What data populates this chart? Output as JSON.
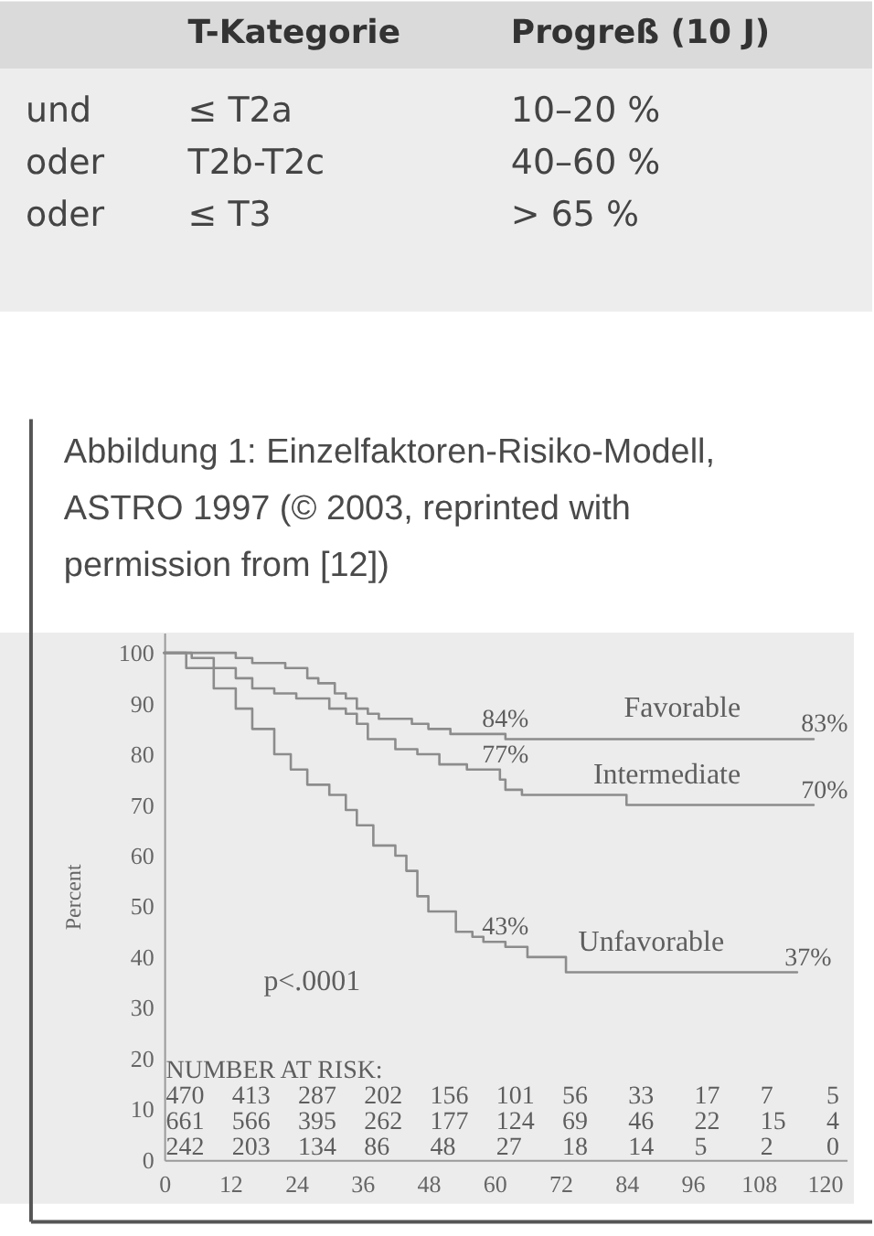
{
  "chart_data": [
    {
      "type": "other",
      "categories": [
        null,
        "T-Kategorie",
        "Progreß (10 J)"
      ],
      "annotations": [
        "und",
        "≤ T2a",
        "10–20 %",
        "oder",
        "T2b-T2c",
        "40–60 %",
        "oder",
        "≤ T3",
        "> 65 %"
      ]
    },
    {
      "type": "step",
      "title": "Abbildung 1: Einzelfaktoren-Risiko-Modell, ASTRO 1997 (© 2003, reprinted with permission from [12])",
      "ylabel": "Percent",
      "xlim": [
        0,
        124
      ],
      "xticks": [
        0,
        12,
        24,
        36,
        48,
        60,
        72,
        84,
        96,
        108,
        120
      ],
      "ylim": [
        0,
        104
      ],
      "yticks": [
        0,
        10,
        20,
        30,
        40,
        50,
        60,
        70,
        80,
        90,
        100
      ],
      "line_style": "solid",
      "series": [
        {
          "name": "Favorable",
          "color": "#8c8c8c",
          "x": [
            0,
            13,
            16,
            22,
            26,
            28,
            31,
            33,
            35,
            37,
            39,
            45,
            48,
            52,
            60,
            62,
            118
          ],
          "values": [
            100,
            100,
            99,
            98,
            97,
            95,
            94,
            92,
            91,
            89,
            88,
            87,
            86,
            85,
            84,
            84,
            83
          ],
          "value_labels": [
            null,
            null,
            null,
            null,
            null,
            null,
            null,
            null,
            null,
            null,
            null,
            null,
            null,
            null,
            "84%",
            null,
            "83%"
          ]
        },
        {
          "name": "Intermediate",
          "color": "#8c8c8c",
          "x": [
            0,
            5,
            9,
            13,
            16,
            20,
            24,
            30,
            33,
            35,
            37,
            42,
            46,
            50,
            55,
            60,
            61,
            62,
            65,
            84,
            118
          ],
          "values": [
            100,
            100,
            99,
            97,
            95,
            93,
            92,
            91,
            89,
            88,
            86,
            83,
            81,
            80,
            78,
            77,
            77,
            75,
            73,
            72,
            70
          ],
          "value_labels": [
            null,
            null,
            null,
            null,
            null,
            null,
            null,
            null,
            null,
            null,
            null,
            null,
            null,
            null,
            null,
            "77%",
            null,
            null,
            null,
            null,
            "70%"
          ]
        },
        {
          "name": "Unfavorable",
          "color": "#8c8c8c",
          "x": [
            0,
            4,
            9,
            13,
            16,
            20,
            23,
            26,
            30,
            33,
            35,
            38,
            42,
            44,
            46,
            48,
            53,
            56,
            58,
            60,
            62,
            66,
            73,
            115
          ],
          "values": [
            100,
            100,
            97,
            93,
            89,
            85,
            80,
            77,
            74,
            72,
            69,
            66,
            62,
            60,
            57,
            52,
            49,
            45,
            44,
            43,
            43,
            42,
            40,
            37
          ],
          "value_labels": [
            null,
            null,
            null,
            null,
            null,
            null,
            null,
            null,
            null,
            null,
            null,
            null,
            null,
            null,
            null,
            null,
            null,
            null,
            null,
            "43%",
            null,
            null,
            null,
            "37%"
          ]
        }
      ],
      "annotations": [
        "p<.0001",
        "NUMBER AT RISK:",
        "470 413 287 202 156 101 56 33 17 7 5",
        "661 566 395 262 177 124 69 46 22 15 4",
        "242 203 134 86 48 27 18 14 5 2 0"
      ]
    }
  ]
}
